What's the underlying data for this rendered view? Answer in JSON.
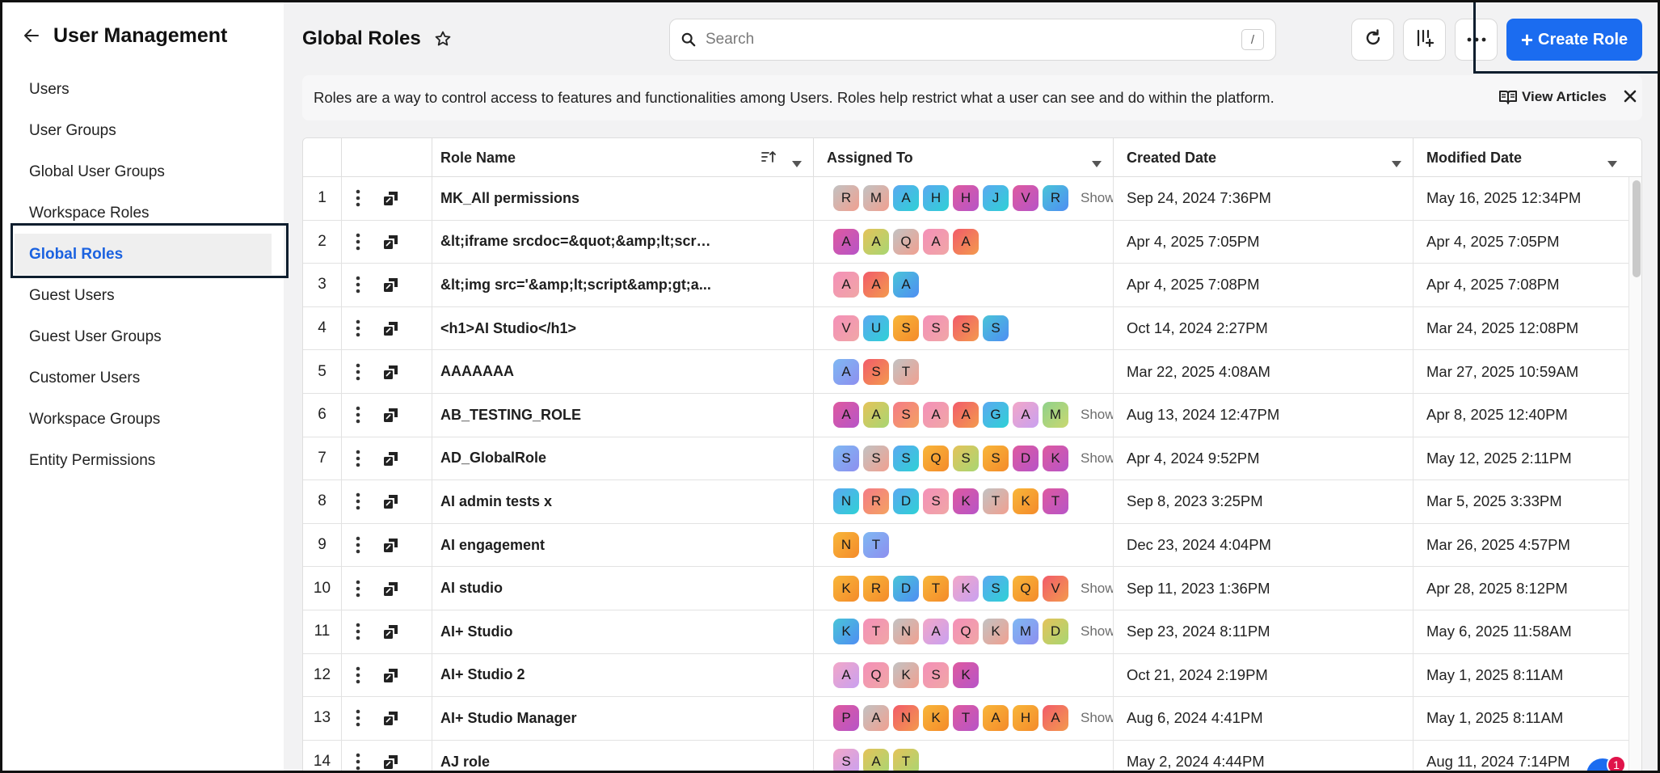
{
  "sidebar": {
    "title": "User Management",
    "items": [
      {
        "label": "Users"
      },
      {
        "label": "User Groups"
      },
      {
        "label": "Global User Groups"
      },
      {
        "label": "Workspace Roles"
      },
      {
        "label": "Global Roles",
        "active": true
      },
      {
        "label": "Guest Users"
      },
      {
        "label": "Guest User Groups"
      },
      {
        "label": "Customer Users"
      },
      {
        "label": "Workspace Groups"
      },
      {
        "label": "Entity Permissions"
      }
    ]
  },
  "header": {
    "title": "Global Roles",
    "search_placeholder": "Search",
    "search_shortcut": "/",
    "create_label": "Create Role"
  },
  "banner": {
    "text": "Roles are a way to control access to features and functionalities among Users. Roles help restrict what a user can see and do within the platform.",
    "view_articles": "View Articles"
  },
  "table": {
    "columns": {
      "role_name": "Role Name",
      "assigned_to": "Assigned To",
      "created_date": "Created Date",
      "modified_date": "Modified Date"
    },
    "show_more_label": "Show",
    "rows": [
      {
        "num": "1",
        "name": "MK_All permissions",
        "avatars": [
          "R",
          "M",
          "A",
          "H",
          "H",
          "J",
          "V",
          "R"
        ],
        "more": true,
        "created": "Sep 24, 2024 7:36PM",
        "modified": "May 16, 2025 12:34PM"
      },
      {
        "num": "2",
        "name": "&lt;iframe srcdoc=&quot;&amp;lt;scri...",
        "avatars": [
          "A",
          "A",
          "Q",
          "A",
          "A"
        ],
        "more": false,
        "created": "Apr 4, 2025 7:05PM",
        "modified": "Apr 4, 2025 7:05PM"
      },
      {
        "num": "3",
        "name": "&lt;img src='&amp;lt;script&amp;gt;a...",
        "avatars": [
          "A",
          "A",
          "A"
        ],
        "more": false,
        "created": "Apr 4, 2025 7:08PM",
        "modified": "Apr 4, 2025 7:08PM"
      },
      {
        "num": "4",
        "name": "<h1>AI Studio</h1>",
        "avatars": [
          "V",
          "U",
          "S",
          "S",
          "S",
          "S"
        ],
        "more": false,
        "created": "Oct 14, 2024 2:27PM",
        "modified": "Mar 24, 2025 12:08PM"
      },
      {
        "num": "5",
        "name": "AAAAAAA",
        "avatars": [
          "A",
          "S",
          "T"
        ],
        "more": false,
        "created": "Mar 22, 2025 4:08AM",
        "modified": "Mar 27, 2025 10:59AM"
      },
      {
        "num": "6",
        "name": "AB_TESTING_ROLE",
        "avatars": [
          "A",
          "A",
          "S",
          "A",
          "A",
          "G",
          "A",
          "M"
        ],
        "more": true,
        "created": "Aug 13, 2024 12:47PM",
        "modified": "Apr 8, 2025 12:40PM"
      },
      {
        "num": "7",
        "name": "AD_GlobalRole",
        "avatars": [
          "S",
          "S",
          "S",
          "Q",
          "S",
          "S",
          "D",
          "K"
        ],
        "more": true,
        "created": "Apr 4, 2024 9:52PM",
        "modified": "May 12, 2025 2:11PM"
      },
      {
        "num": "8",
        "name": "AI admin tests x",
        "avatars": [
          "N",
          "R",
          "D",
          "S",
          "K",
          "T",
          "K",
          "T"
        ],
        "more": false,
        "created": "Sep 8, 2023 3:25PM",
        "modified": "Mar 5, 2025 3:33PM"
      },
      {
        "num": "9",
        "name": "AI engagement",
        "avatars": [
          "N",
          "T"
        ],
        "more": false,
        "created": "Dec 23, 2024 4:04PM",
        "modified": "Mar 26, 2025 4:57PM"
      },
      {
        "num": "10",
        "name": "AI studio",
        "avatars": [
          "K",
          "R",
          "D",
          "T",
          "K",
          "S",
          "Q",
          "V"
        ],
        "more": true,
        "created": "Sep 11, 2023 1:36PM",
        "modified": "Apr 28, 2025 8:12PM"
      },
      {
        "num": "11",
        "name": "AI+ Studio",
        "avatars": [
          "K",
          "T",
          "N",
          "A",
          "Q",
          "K",
          "M",
          "D"
        ],
        "more": true,
        "created": "Sep 23, 2024 8:11PM",
        "modified": "May 6, 2025 11:58AM"
      },
      {
        "num": "12",
        "name": "AI+ Studio 2",
        "avatars": [
          "A",
          "Q",
          "K",
          "S",
          "K"
        ],
        "more": false,
        "created": "Oct 21, 2024 2:19PM",
        "modified": "May 1, 2025 8:11AM"
      },
      {
        "num": "13",
        "name": "AI+ Studio Manager",
        "avatars": [
          "P",
          "A",
          "N",
          "K",
          "T",
          "A",
          "H",
          "A"
        ],
        "more": true,
        "created": "Aug 6, 2024 4:41PM",
        "modified": "May 1, 2025 8:11AM"
      },
      {
        "num": "14",
        "name": "AJ role",
        "avatars": [
          "S",
          "A",
          "T"
        ],
        "more": false,
        "created": "May 2, 2024 4:44PM",
        "modified": "Aug 11, 2024 7:14PM"
      }
    ]
  },
  "notification_count": "1",
  "colors": {
    "accent": "#1b6cf0",
    "active_nav_text": "#1b62e0",
    "avatar_gradients": [
      [
        "#f47b87",
        "#f4a261"
      ],
      [
        "#e4c35a",
        "#a8d672"
      ],
      [
        "#f2a7c8",
        "#c9a0f0"
      ],
      [
        "#5aa9f0",
        "#2fd0d6"
      ],
      [
        "#f25b6a",
        "#f39a4e"
      ],
      [
        "#7fb8f2",
        "#8d8ff0"
      ],
      [
        "#f8b63a",
        "#f48b2a"
      ],
      [
        "#8fd18b",
        "#c9d870"
      ],
      [
        "#de5aa0",
        "#b754c7"
      ],
      [
        "#49c4d8",
        "#4f8ef2"
      ],
      [
        "#c2c2c2",
        "#f0a090"
      ],
      [
        "#f490b8",
        "#f0a6a6"
      ]
    ]
  },
  "icons": {
    "back": "arrow-left-icon",
    "star": "star-outline-icon",
    "search": "search-icon",
    "refresh": "refresh-icon",
    "columns": "column-settings-icon",
    "more": "more-horizontal-icon",
    "book": "book-open-icon",
    "close": "close-icon",
    "kebab": "kebab-vertical-icon",
    "role": "role-icon"
  }
}
